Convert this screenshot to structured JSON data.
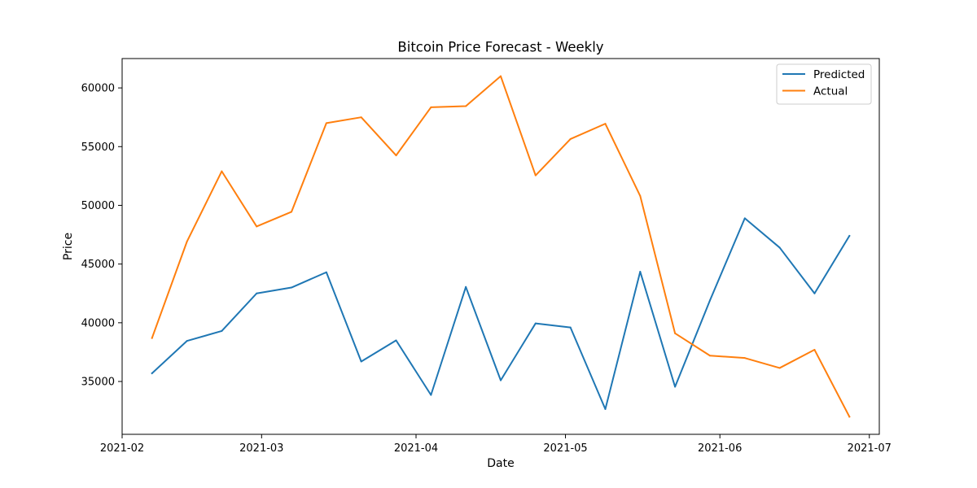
{
  "chart_data": {
    "type": "line",
    "title": "Bitcoin Price Forecast - Weekly",
    "xlabel": "Date",
    "ylabel": "Price",
    "x": [
      "2021-02-07",
      "2021-02-14",
      "2021-02-21",
      "2021-02-28",
      "2021-03-07",
      "2021-03-14",
      "2021-03-21",
      "2021-03-28",
      "2021-04-04",
      "2021-04-11",
      "2021-04-18",
      "2021-04-25",
      "2021-05-02",
      "2021-05-09",
      "2021-05-16",
      "2021-05-23",
      "2021-05-30",
      "2021-06-06",
      "2021-06-13",
      "2021-06-20",
      "2021-06-27"
    ],
    "series": [
      {
        "name": "Predicted",
        "color": "#1f77b4",
        "values": [
          35700,
          38450,
          39300,
          42500,
          43000,
          44300,
          36700,
          38500,
          33850,
          43050,
          35100,
          39950,
          39600,
          32650,
          44350,
          34550,
          41900,
          48900,
          46400,
          42500,
          47400
        ]
      },
      {
        "name": "Actual",
        "color": "#ff7f0e",
        "values": [
          38700,
          46900,
          52900,
          48200,
          49450,
          57000,
          57500,
          54250,
          58350,
          58450,
          61000,
          52550,
          55650,
          56950,
          50800,
          39100,
          37200,
          37000,
          36150,
          37700,
          32000
        ]
      }
    ],
    "xlim": [
      "2021-02-01",
      "2021-07-03"
    ],
    "ylim": [
      30500,
      62500
    ],
    "xticks": [
      {
        "date": "2021-02-01",
        "label": "2021-02"
      },
      {
        "date": "2021-03-01",
        "label": "2021-03"
      },
      {
        "date": "2021-04-01",
        "label": "2021-04"
      },
      {
        "date": "2021-05-01",
        "label": "2021-05"
      },
      {
        "date": "2021-06-01",
        "label": "2021-06"
      },
      {
        "date": "2021-07-01",
        "label": "2021-07"
      }
    ],
    "yticks": [
      35000,
      40000,
      45000,
      50000,
      55000,
      60000
    ],
    "grid": false,
    "legend_position": "top-right"
  }
}
